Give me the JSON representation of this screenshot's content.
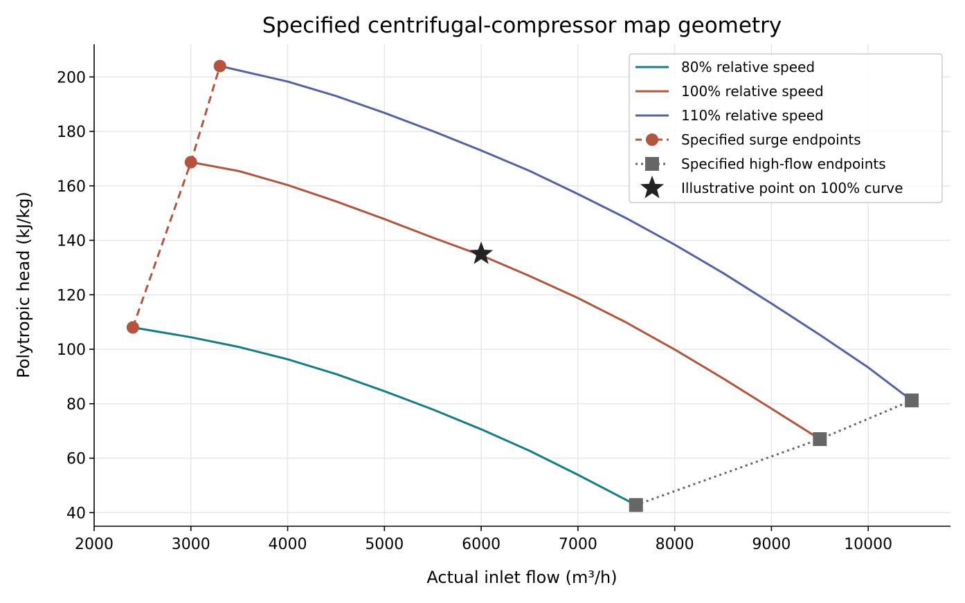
{
  "chart_data": {
    "type": "line",
    "title": "Specified centrifugal-compressor map geometry",
    "xlabel": "Actual inlet flow (m³/h)",
    "ylabel": "Polytropic head (kJ/kg)",
    "xlim": [
      2000,
      10850
    ],
    "ylim": [
      35,
      212
    ],
    "x_ticks": [
      2000,
      3000,
      4000,
      5000,
      6000,
      7000,
      8000,
      9000,
      10000
    ],
    "y_ticks": [
      40,
      60,
      80,
      100,
      120,
      140,
      160,
      180,
      200
    ],
    "grid": true,
    "legend_position": "top-right",
    "colors": {
      "speed80": "#137e87",
      "speed100": "#b5543c",
      "speed110": "#5262a3",
      "highflow": "#666666",
      "star": "#222222"
    },
    "series": [
      {
        "name": "80% relative speed",
        "key": "speed80",
        "points": [
          [
            2400,
            108
          ],
          [
            3000,
            104.4
          ],
          [
            3500,
            100.8
          ],
          [
            4000,
            96.3
          ],
          [
            4500,
            90.9
          ],
          [
            5000,
            84.6
          ],
          [
            5500,
            77.9
          ],
          [
            6000,
            70.6
          ],
          [
            6500,
            62.7
          ],
          [
            7000,
            53.9
          ],
          [
            7600,
            42.8
          ]
        ]
      },
      {
        "name": "100% relative speed",
        "key": "speed100",
        "points": [
          [
            3000,
            168.7
          ],
          [
            3500,
            165.4
          ],
          [
            4000,
            160.3
          ],
          [
            4500,
            154.3
          ],
          [
            5000,
            147.8
          ],
          [
            5500,
            141.0
          ],
          [
            6000,
            134.5
          ],
          [
            6500,
            126.9
          ],
          [
            7000,
            118.8
          ],
          [
            7500,
            109.8
          ],
          [
            8000,
            99.9
          ],
          [
            8500,
            89.3
          ],
          [
            9000,
            78.2
          ],
          [
            9500,
            67.0
          ]
        ]
      },
      {
        "name": "110% relative speed",
        "key": "speed110",
        "points": [
          [
            3300,
            204
          ],
          [
            4000,
            198.3
          ],
          [
            4500,
            193.0
          ],
          [
            5000,
            186.8
          ],
          [
            5500,
            180.1
          ],
          [
            6000,
            173.0
          ],
          [
            6500,
            165.5
          ],
          [
            7000,
            157.0
          ],
          [
            7500,
            148.1
          ],
          [
            8000,
            138.4
          ],
          [
            8500,
            128.0
          ],
          [
            9000,
            116.8
          ],
          [
            9500,
            105.3
          ],
          [
            10000,
            93.3
          ],
          [
            10450,
            81.2
          ]
        ]
      }
    ],
    "surge_endpoints": {
      "name": "Specified surge endpoints",
      "points": [
        [
          2400,
          108
        ],
        [
          3000,
          168.7
        ],
        [
          3300,
          204
        ]
      ]
    },
    "high_flow_endpoints": {
      "name": "Specified high-flow endpoints",
      "points": [
        [
          7600,
          42.8
        ],
        [
          9500,
          67.0
        ],
        [
          10450,
          81.2
        ]
      ]
    },
    "illustrative_point": {
      "name": "Illustrative point on 100% curve",
      "x": 6000,
      "y": 135
    }
  }
}
